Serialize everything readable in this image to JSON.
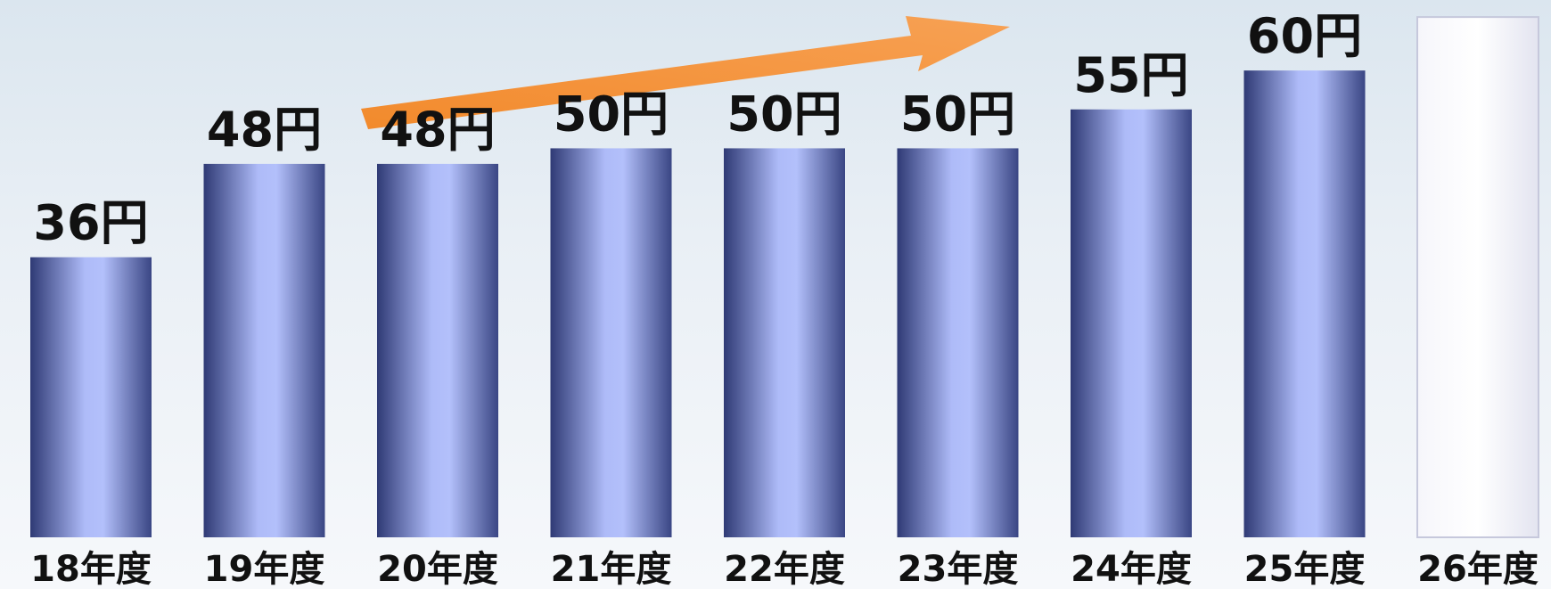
{
  "chart_data": {
    "type": "bar",
    "title": "",
    "xlabel": "",
    "ylabel": "",
    "ylim": [
      0,
      67
    ],
    "grid": false,
    "legend": "none",
    "categories": [
      "18年度",
      "19年度",
      "20年度",
      "21年度",
      "22年度",
      "23年度",
      "24年度",
      "25年度",
      "26年度"
    ],
    "values": [
      36,
      48,
      48,
      50,
      50,
      50,
      55,
      60,
      null
    ],
    "value_labels": [
      "36円",
      "48円",
      "48円",
      "50円",
      "50円",
      "50円",
      "55円",
      "60円",
      ""
    ],
    "placeholder_values": [
      null,
      null,
      null,
      null,
      null,
      null,
      null,
      null,
      60
    ],
    "trend_arrow": true
  },
  "colors": {
    "bar_dark": "#3a4684",
    "bar_light": "#b3c0fb",
    "placeholder_fill": "#eeeef7",
    "placeholder_edge": "#c6c8dc",
    "arrow": "#f08a30",
    "text": "#111111"
  }
}
